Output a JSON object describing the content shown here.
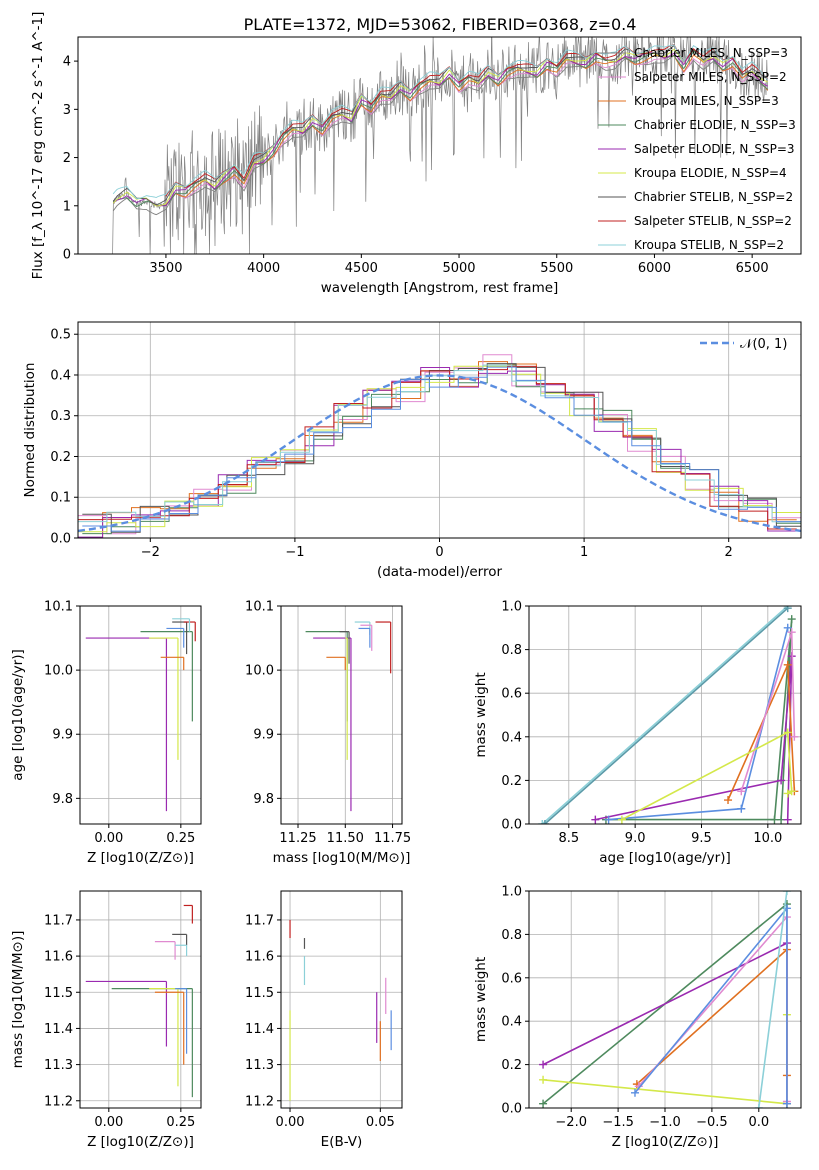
{
  "figure_title": "PLATE=1372, MJD=53062, FIBERID=0368, z=0.4",
  "colors": {
    "spectrum": "#808080",
    "grid": "#b0b0b0",
    "gauss": "#5b8ee0",
    "models": [
      "#808080",
      "#e07020",
      "#e08ad0",
      "#4e8a5e",
      "#9a2ab0",
      "#d4e84a",
      "#555555",
      "#c02020",
      "#8cd0d8",
      "#5b8ee0"
    ]
  },
  "chart_data": [
    {
      "id": "spectrum",
      "type": "line",
      "title": "PLATE=1372, MJD=53062, FIBERID=0368, z=0.4",
      "xlabel": "wavelength [Angstrom, rest frame]",
      "ylabel": "Flux [f_λ 10^-17 erg cm^-2 s^-1 A^-1]",
      "xlim": [
        3050,
        6750
      ],
      "ylim": [
        0,
        4.5
      ],
      "xticks": [
        "3500",
        "4000",
        "4500",
        "5000",
        "5500",
        "6000",
        "6500"
      ],
      "yticks": [
        "0",
        "1",
        "2",
        "3",
        "4"
      ],
      "legend_position": "top-right",
      "model_continuum": {
        "x": [
          3215,
          3250,
          3300,
          3350,
          3400,
          3450,
          3500,
          3550,
          3600,
          3650,
          3700,
          3750,
          3800,
          3850,
          3900,
          3950,
          4000,
          4050,
          4100,
          4150,
          4200,
          4250,
          4300,
          4350,
          4400,
          4450,
          4500,
          4550,
          4600,
          4650,
          4700,
          4750,
          4800,
          4850,
          4900,
          4950,
          5000,
          5050,
          5100,
          5150,
          5200,
          5250,
          5300,
          5350,
          5400,
          5450,
          5500,
          5550,
          5600,
          5650,
          5700,
          5750,
          5800,
          5850,
          5900,
          5950,
          6000,
          6050,
          6100,
          6150,
          6200,
          6250,
          6300,
          6350,
          6400,
          6450,
          6500,
          6550,
          6580
        ],
        "y": [
          1.0,
          1.15,
          1.25,
          1.05,
          1.1,
          1.0,
          1.05,
          1.35,
          1.3,
          1.45,
          1.55,
          1.4,
          1.6,
          1.75,
          1.5,
          1.9,
          1.95,
          2.15,
          2.45,
          2.6,
          2.55,
          2.75,
          2.6,
          2.85,
          2.9,
          2.8,
          3.2,
          3.05,
          3.3,
          3.25,
          3.45,
          3.3,
          3.5,
          3.6,
          3.55,
          3.75,
          3.5,
          3.65,
          3.55,
          3.75,
          3.6,
          3.8,
          3.85,
          3.8,
          3.75,
          3.95,
          3.85,
          4.05,
          4.0,
          3.95,
          4.1,
          4.0,
          4.0,
          4.15,
          4.05,
          4.1,
          4.15,
          4.1,
          4.2,
          3.9,
          4.2,
          4.0,
          4.1,
          3.9,
          4.0,
          3.7,
          3.8,
          3.6,
          3.5
        ]
      },
      "series": [
        {
          "name": "Chabrier MILES, N_SSP=3",
          "color": "#808080"
        },
        {
          "name": "Salpeter MILES, N_SSP=2",
          "color": "#e08ad0"
        },
        {
          "name": "Kroupa MILES, N_SSP=3",
          "color": "#e07020"
        },
        {
          "name": "Chabrier ELODIE, N_SSP=3",
          "color": "#4e8a5e"
        },
        {
          "name": "Salpeter ELODIE, N_SSP=3",
          "color": "#9a2ab0"
        },
        {
          "name": "Kroupa ELODIE, N_SSP=4",
          "color": "#d4e84a"
        },
        {
          "name": "Chabrier STELIB, N_SSP=2",
          "color": "#555555"
        },
        {
          "name": "Salpeter STELIB, N_SSP=2",
          "color": "#c02020"
        },
        {
          "name": "Kroupa STELIB, N_SSP=2",
          "color": "#8cd0d8"
        }
      ]
    },
    {
      "id": "residuals",
      "type": "histogram",
      "xlabel": "(data-model)/error",
      "ylabel": "Normed distribution",
      "xlim": [
        -2.5,
        2.5
      ],
      "ylim": [
        0,
        0.53
      ],
      "xticks": [
        "−2",
        "−1",
        "0",
        "1",
        "2"
      ],
      "yticks": [
        "0.0",
        "0.1",
        "0.2",
        "0.3",
        "0.4",
        "0.5"
      ],
      "bin_edges": [
        -2.5,
        -2.3,
        -2.1,
        -1.9,
        -1.7,
        -1.5,
        -1.3,
        -1.1,
        -0.9,
        -0.7,
        -0.5,
        -0.3,
        -0.1,
        0.1,
        0.3,
        0.5,
        0.7,
        0.9,
        1.1,
        1.3,
        1.5,
        1.7,
        1.9,
        2.1,
        2.3,
        2.5
      ],
      "base_hist": [
        0.03,
        0.035,
        0.05,
        0.08,
        0.1,
        0.13,
        0.17,
        0.2,
        0.25,
        0.3,
        0.34,
        0.36,
        0.39,
        0.4,
        0.42,
        0.4,
        0.37,
        0.33,
        0.29,
        0.24,
        0.19,
        0.14,
        0.1,
        0.07,
        0.045
      ],
      "gauss_legend": "𝒩(0, 1)",
      "legend_position": "top-right"
    },
    {
      "id": "age_vs_Z",
      "type": "scatter",
      "xlabel": "Z [log10(Z/Z⊙)]",
      "ylabel": "age [log10(age/yr)]",
      "xlim": [
        -0.1,
        0.32
      ],
      "ylim": [
        9.76,
        10.1
      ],
      "xticks": [
        "0.00",
        "0.25"
      ],
      "yticks": [
        "9.8",
        "9.9",
        "10.0",
        "10.1"
      ],
      "points": [
        {
          "color": "#9a2ab0",
          "x": 0.2,
          "y": 10.05,
          "xerr": 0.28,
          "yerr": 0.27
        },
        {
          "color": "#4e8a5e",
          "x": 0.29,
          "y": 10.06,
          "xerr": 0.18,
          "yerr": 0.14
        },
        {
          "color": "#555555",
          "x": 0.27,
          "y": 10.075,
          "xerr": 0.05,
          "yerr": 0.05
        },
        {
          "color": "#d4e84a",
          "x": 0.24,
          "y": 10.05,
          "xerr": 0.1,
          "yerr": 0.19
        },
        {
          "color": "#e07020",
          "x": 0.26,
          "y": 10.02,
          "xerr": 0.08,
          "yerr": 0.02
        },
        {
          "color": "#c02020",
          "x": 0.3,
          "y": 10.075,
          "xerr": 0.04,
          "yerr": 0.03
        },
        {
          "color": "#8cd0d8",
          "x": 0.28,
          "y": 10.08,
          "xerr": 0.06,
          "yerr": 0.02
        },
        {
          "color": "#5b8ee0",
          "x": 0.26,
          "y": 10.065,
          "xerr": 0.06,
          "yerr": 0.03
        }
      ]
    },
    {
      "id": "age_vs_mass",
      "type": "scatter",
      "xlabel": "mass [log10(M/M⊙)]",
      "ylabel": "",
      "xlim": [
        11.16,
        11.8
      ],
      "ylim": [
        9.76,
        10.1
      ],
      "xticks": [
        "11.25",
        "11.50",
        "11.75"
      ],
      "yticks": [
        "9.8",
        "9.9",
        "10.0",
        "10.1"
      ],
      "points": [
        {
          "color": "#9a2ab0",
          "x": 11.53,
          "y": 10.05,
          "xerr": 0.2,
          "yerr": 0.27
        },
        {
          "color": "#4e8a5e",
          "x": 11.51,
          "y": 10.06,
          "xerr": 0.22,
          "yerr": 0.14
        },
        {
          "color": "#555555",
          "x": 11.52,
          "y": 10.06,
          "xerr": 0.05,
          "yerr": 0.05
        },
        {
          "color": "#d4e84a",
          "x": 11.51,
          "y": 10.05,
          "xerr": 0.01,
          "yerr": 0.19
        },
        {
          "color": "#e07020",
          "x": 11.5,
          "y": 10.02,
          "xerr": 0.1,
          "yerr": 0.02
        },
        {
          "color": "#c02020",
          "x": 11.74,
          "y": 10.075,
          "xerr": 0.08,
          "yerr": 0.08
        },
        {
          "color": "#8cd0d8",
          "x": 11.63,
          "y": 10.075,
          "xerr": 0.08,
          "yerr": 0.02
        },
        {
          "color": "#e08ad0",
          "x": 11.64,
          "y": 10.07,
          "xerr": 0.06,
          "yerr": 0.04
        },
        {
          "color": "#5b8ee0",
          "x": 11.63,
          "y": 10.065,
          "xerr": 0.06,
          "yerr": 0.03
        }
      ]
    },
    {
      "id": "weight_vs_age",
      "type": "line",
      "xlabel": "age [log10(age/yr)]",
      "ylabel": "mass weight",
      "xlim": [
        8.2,
        10.25
      ],
      "ylim": [
        0,
        1
      ],
      "xticks": [
        "8.5",
        "9.0",
        "9.5",
        "10.0"
      ],
      "yticks": [
        "0.0",
        "0.2",
        "0.4",
        "0.6",
        "0.8",
        "1.0"
      ],
      "series": [
        {
          "color": "#4e8a5e",
          "x": [
            8.78,
            10.05,
            10.18,
            10.1
          ],
          "y": [
            0.02,
            0.02,
            0.94,
            0.02
          ]
        },
        {
          "color": "#9a2ab0",
          "x": [
            8.7,
            10.1,
            10.18,
            10.15
          ],
          "y": [
            0.02,
            0.2,
            0.77,
            0.02
          ]
        },
        {
          "color": "#5b8ee0",
          "x": [
            8.8,
            9.8,
            10.15
          ],
          "y": [
            0.02,
            0.07,
            0.9
          ]
        },
        {
          "color": "#e07020",
          "x": [
            9.7,
            10.15,
            10.2
          ],
          "y": [
            0.11,
            0.73,
            0.15
          ]
        },
        {
          "color": "#e08ad0",
          "x": [
            9.8,
            10.18,
            10.2
          ],
          "y": [
            0.15,
            0.88,
            0.4
          ]
        },
        {
          "color": "#d4e84a",
          "x": [
            8.9,
            10.15,
            10.18,
            10.15
          ],
          "y": [
            0.02,
            0.42,
            0.15,
            0.14
          ]
        },
        {
          "color": "#8cd0d8",
          "x": [
            8.3,
            10.15
          ],
          "y": [
            0.0,
            1.0
          ]
        },
        {
          "color": "#5b9aa8",
          "x": [
            8.32,
            10.15
          ],
          "y": [
            0.0,
            0.99
          ]
        }
      ]
    },
    {
      "id": "mass_vs_Z",
      "type": "scatter",
      "xlabel": "Z [log10(Z/Z⊙)]",
      "ylabel": "mass [log10(M/M⊙)]",
      "xlim": [
        -0.1,
        0.32
      ],
      "ylim": [
        11.18,
        11.78
      ],
      "xticks": [
        "0.00",
        "0.25"
      ],
      "yticks": [
        "11.2",
        "11.3",
        "11.4",
        "11.5",
        "11.6",
        "11.7"
      ],
      "points": [
        {
          "color": "#c02020",
          "x": 0.29,
          "y": 11.74,
          "xerr": 0.03,
          "yerr": 0.05
        },
        {
          "color": "#555555",
          "x": 0.27,
          "y": 11.66,
          "xerr": 0.05,
          "yerr": 0.03
        },
        {
          "color": "#e08ad0",
          "x": 0.23,
          "y": 11.64,
          "xerr": 0.07,
          "yerr": 0.05
        },
        {
          "color": "#8cd0d8",
          "x": 0.27,
          "y": 11.63,
          "xerr": 0.04,
          "yerr": 0.03
        },
        {
          "color": "#9a2ab0",
          "x": 0.2,
          "y": 11.53,
          "xerr": 0.28,
          "yerr": 0.18
        },
        {
          "color": "#4e8a5e",
          "x": 0.29,
          "y": 11.51,
          "xerr": 0.28,
          "yerr": 0.3
        },
        {
          "color": "#d4e84a",
          "x": 0.24,
          "y": 11.51,
          "xerr": 0.1,
          "yerr": 0.27
        },
        {
          "color": "#e07020",
          "x": 0.26,
          "y": 11.5,
          "xerr": 0.1,
          "yerr": 0.2
        },
        {
          "color": "#5b8ee0",
          "x": 0.27,
          "y": 11.51,
          "xerr": 0.04,
          "yerr": 0.18
        }
      ]
    },
    {
      "id": "mass_vs_ebv",
      "type": "scatter",
      "xlabel": "E(B-V)",
      "ylabel": "",
      "xlim": [
        -0.005,
        0.062
      ],
      "ylim": [
        11.18,
        11.78
      ],
      "xticks": [
        "0.00",
        "0.05"
      ],
      "yticks": [
        "11.2",
        "11.3",
        "11.4",
        "11.5",
        "11.6",
        "11.7"
      ],
      "points": [
        {
          "color": "#c02020",
          "x": 0.0,
          "y": 11.7,
          "yerr": 0.05
        },
        {
          "color": "#d4e84a",
          "x": 0.0,
          "y": 11.45,
          "yerr": 0.25
        },
        {
          "color": "#555555",
          "x": 0.008,
          "y": 11.65,
          "yerr": 0.03
        },
        {
          "color": "#8cd0d8",
          "x": 0.008,
          "y": 11.6,
          "yerr": 0.08
        },
        {
          "color": "#9a2ab0",
          "x": 0.048,
          "y": 11.5,
          "yerr": 0.14
        },
        {
          "color": "#e07020",
          "x": 0.05,
          "y": 11.42,
          "yerr": 0.11
        },
        {
          "color": "#e08ad0",
          "x": 0.053,
          "y": 11.54,
          "yerr": 0.1
        },
        {
          "color": "#5b8ee0",
          "x": 0.056,
          "y": 11.45,
          "yerr": 0.11
        }
      ]
    },
    {
      "id": "weight_vs_Z",
      "type": "line",
      "xlabel": "Z [log10(Z/Z⊙)]",
      "ylabel": "mass weight",
      "xlim": [
        -2.45,
        0.45
      ],
      "ylim": [
        0,
        1
      ],
      "xticks": [
        "−2.0",
        "−1.5",
        "−1.0",
        "−0.5",
        "0.0"
      ],
      "yticks": [
        "0.0",
        "0.2",
        "0.4",
        "0.6",
        "0.8",
        "1.0"
      ],
      "series": [
        {
          "color": "#4e8a5e",
          "x": [
            -2.3,
            0.3,
            0.3
          ],
          "y": [
            0.02,
            0.94,
            0.02
          ]
        },
        {
          "color": "#9a2ab0",
          "x": [
            -2.3,
            0.3,
            0.3
          ],
          "y": [
            0.2,
            0.76,
            0.02
          ]
        },
        {
          "color": "#d4e84a",
          "x": [
            -2.3,
            0.3,
            0.3
          ],
          "y": [
            0.13,
            0.02,
            0.43
          ]
        },
        {
          "color": "#e07020",
          "x": [
            -1.3,
            0.3,
            0.3
          ],
          "y": [
            0.11,
            0.73,
            0.15
          ]
        },
        {
          "color": "#e08ad0",
          "x": [
            -1.28,
            0.3,
            0.3
          ],
          "y": [
            0.1,
            0.88,
            0.03
          ]
        },
        {
          "color": "#5b8ee0",
          "x": [
            -1.32,
            0.3,
            0.3
          ],
          "y": [
            0.07,
            0.92,
            0.02
          ]
        },
        {
          "color": "#8cd0d8",
          "x": [
            0.0,
            0.3
          ],
          "y": [
            0.0,
            1.0
          ]
        }
      ]
    }
  ]
}
